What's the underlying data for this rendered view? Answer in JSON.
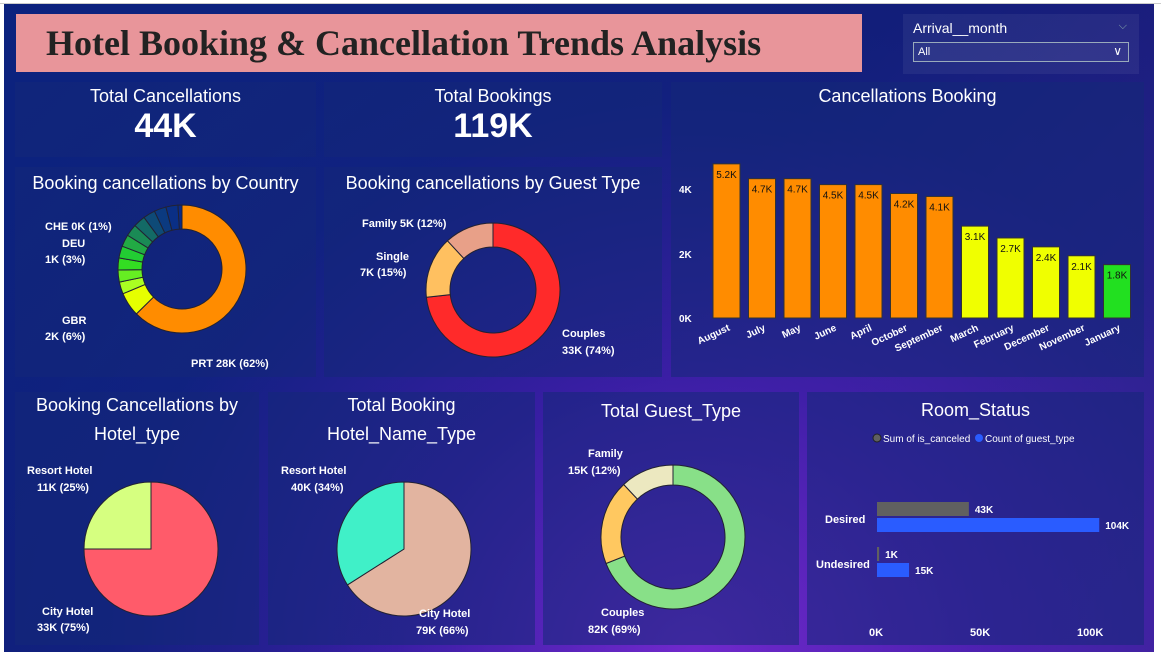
{
  "title": "Hotel Booking & Cancellation  Trends Analysis",
  "slicer": {
    "label": "Arrival__month",
    "value": "All"
  },
  "kpis": {
    "cancellations": {
      "label": "Total Cancellations",
      "value": "44K"
    },
    "bookings": {
      "label": "Total Bookings",
      "value": "119K"
    }
  },
  "country_chart": {
    "title": "Booking cancellations by Country",
    "labels": {
      "che": "CHE 0K (1%)",
      "deu_1": "DEU",
      "deu_2": "1K (3%)",
      "gbr_1": "GBR",
      "gbr_2": "2K (6%)",
      "prt": "PRT 28K (62%)"
    }
  },
  "guest_type_chart": {
    "title": "Booking cancellations by Guest Type",
    "labels": {
      "family": "Family 5K (12%)",
      "single_1": "Single",
      "single_2": "7K (15%)",
      "couples_1": "Couples",
      "couples_2": "33K (74%)"
    }
  },
  "hotel_type_chart": {
    "title_1": "Booking Cancellations by",
    "title_2": "Hotel_type",
    "labels": {
      "resort_1": "Resort Hotel",
      "resort_2": "11K (25%)",
      "city_1": "City Hotel",
      "city_2": "33K (75%)"
    }
  },
  "hotel_name_chart": {
    "title_1": "Total Booking",
    "title_2": "Hotel_Name_Type",
    "labels": {
      "resort_1": "Resort Hotel",
      "resort_2": "40K (34%)",
      "city_1": "City Hotel",
      "city_2": "79K (66%)"
    }
  },
  "total_guest_chart": {
    "title": "Total Guest_Type",
    "labels": {
      "family_1": "Family",
      "family_2": "15K (12%)",
      "couples_1": "Couples",
      "couples_2": "82K (69%)"
    }
  },
  "room_status": {
    "title": "Room_Status",
    "legend": [
      "Sum of is_canceled",
      "Count of guest_type"
    ],
    "rows": [
      {
        "label": "Desired",
        "labels": [
          "43K",
          "104K"
        ]
      },
      {
        "label": "Undesired",
        "labels": [
          "1K",
          "15K"
        ]
      }
    ],
    "x_ticks": [
      "0K",
      "50K",
      "100K"
    ]
  },
  "chart_data": [
    {
      "type": "bar",
      "title": "Cancellations Booking",
      "categories": [
        "August",
        "July",
        "May",
        "June",
        "April",
        "October",
        "September",
        "March",
        "February",
        "December",
        "November",
        "January"
      ],
      "values": [
        5.2,
        4.7,
        4.7,
        4.5,
        4.5,
        4.2,
        4.1,
        3.1,
        2.7,
        2.4,
        2.1,
        1.8
      ],
      "data_labels": [
        "5.2K",
        "4.7K",
        "4.7K",
        "4.5K",
        "4.5K",
        "4.2K",
        "4.1K",
        "3.1K",
        "2.7K",
        "2.4K",
        "2.1K",
        "1.8K"
      ],
      "colors": [
        "#ff8c00",
        "#ff8c00",
        "#ff8c00",
        "#ff8c00",
        "#ff8c00",
        "#ff8c00",
        "#ff8c00",
        "#f0ff00",
        "#f0ff00",
        "#f0ff00",
        "#f0ff00",
        "#22e020"
      ],
      "y_ticks": [
        "0K",
        "2K",
        "4K"
      ],
      "ylim": [
        0,
        5.6
      ]
    },
    {
      "type": "pie",
      "title": "Booking cancellations by Country",
      "donut": true,
      "slices": [
        {
          "value": 62,
          "color": "#ff8c00"
        },
        {
          "value": 6,
          "color": "#e6ff00"
        },
        {
          "value": 3,
          "color": "#aaff22"
        },
        {
          "value": 3,
          "color": "#66ee22"
        },
        {
          "value": 3,
          "color": "#33dd22"
        },
        {
          "value": 3,
          "color": "#22cc33"
        },
        {
          "value": 3,
          "color": "#22aa44"
        },
        {
          "value": 3,
          "color": "#1a8a55"
        },
        {
          "value": 3,
          "color": "#136a66"
        },
        {
          "value": 3,
          "color": "#0e4a77"
        },
        {
          "value": 3,
          "color": "#0b3a80"
        },
        {
          "value": 3,
          "color": "#0a2f85"
        },
        {
          "value": 1,
          "color": "#0a2a88"
        }
      ]
    },
    {
      "type": "pie",
      "title": "Booking cancellations by Guest Type",
      "donut": true,
      "slices": [
        {
          "value": 74,
          "color": "#ff2a2a"
        },
        {
          "value": 15,
          "color": "#ffc060"
        },
        {
          "value": 12,
          "color": "#e8a088"
        }
      ]
    },
    {
      "type": "pie",
      "title": "Booking Cancellations by Hotel_type",
      "slices": [
        {
          "value": 75,
          "color": "#ff5b6a"
        },
        {
          "value": 25,
          "color": "#d6ff80"
        }
      ]
    },
    {
      "type": "pie",
      "title": "Total Booking Hotel_Name_Type",
      "slices": [
        {
          "value": 66,
          "color": "#e2b4a0"
        },
        {
          "value": 34,
          "color": "#40f0c8"
        }
      ]
    },
    {
      "type": "pie",
      "title": "Total Guest_Type",
      "donut": true,
      "slices": [
        {
          "value": 69,
          "color": "#88e088"
        },
        {
          "value": 19,
          "color": "#ffc860"
        },
        {
          "value": 12,
          "color": "#ece8c0"
        }
      ]
    },
    {
      "type": "bar",
      "title": "Room_Status",
      "orientation": "horizontal",
      "categories": [
        "Desired",
        "Undesired"
      ],
      "series": [
        {
          "name": "Sum of is_canceled",
          "values": [
            43,
            1
          ],
          "color": "#606060"
        },
        {
          "name": "Count of guest_type",
          "values": [
            104,
            15
          ],
          "color": "#2a5cff"
        }
      ],
      "xlim": [
        0,
        117
      ]
    }
  ]
}
